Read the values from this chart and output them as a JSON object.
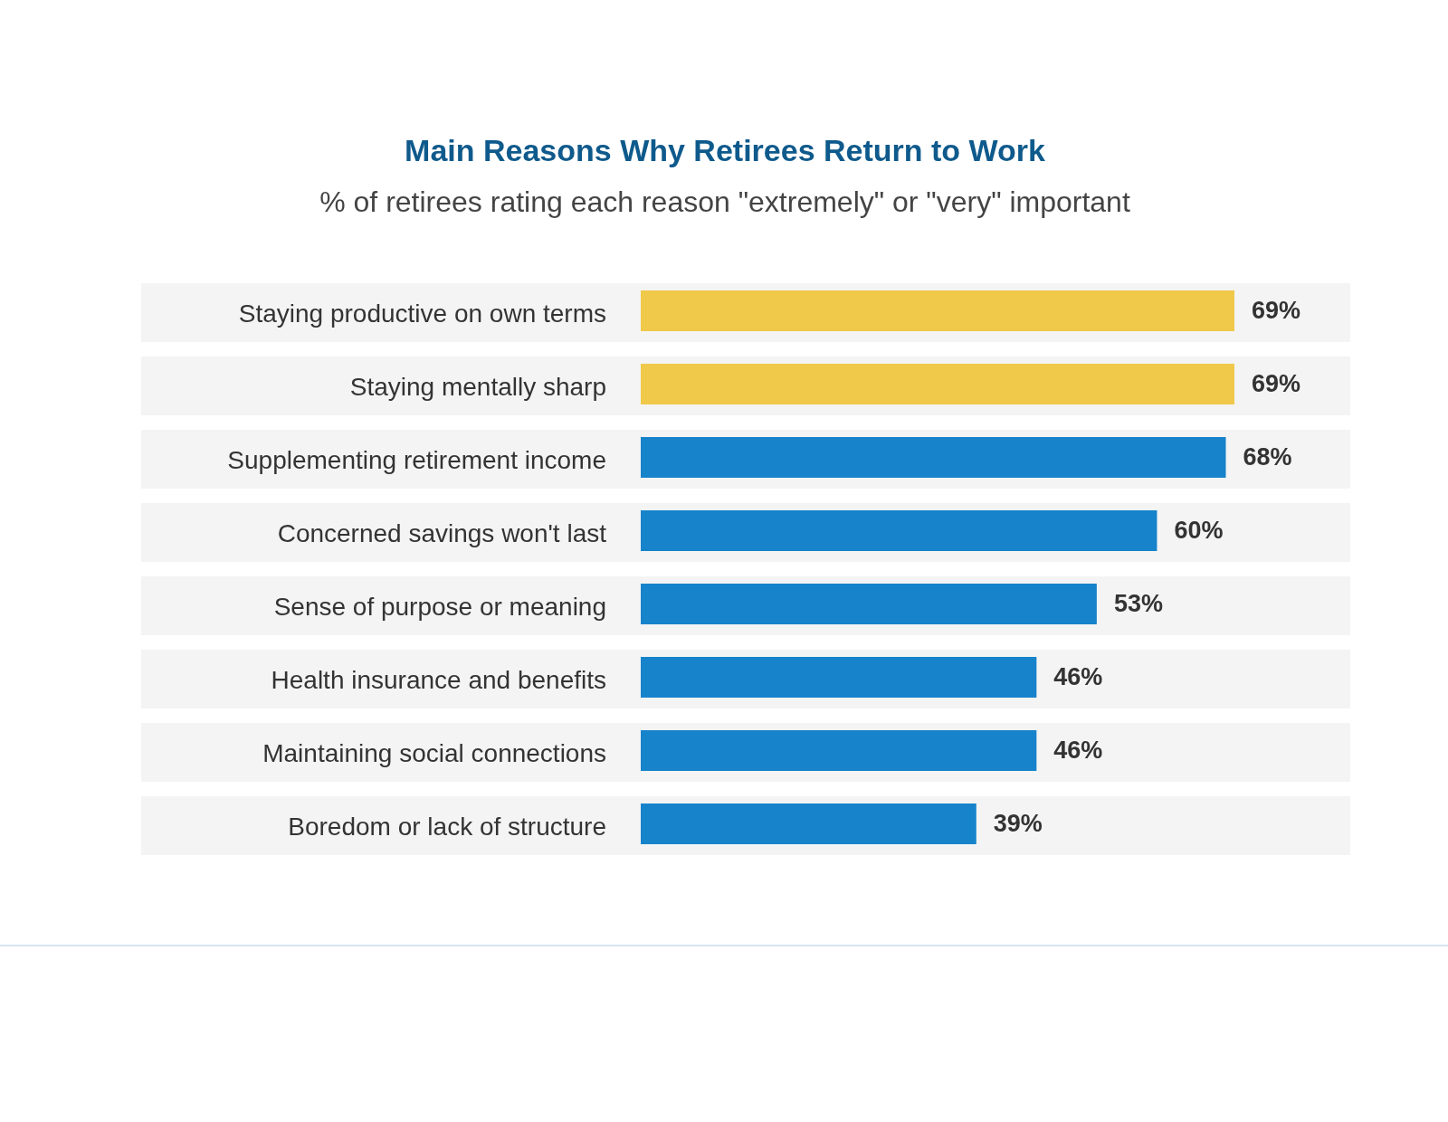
{
  "chart_data": {
    "type": "bar",
    "orientation": "horizontal",
    "title": "Main Reasons Why Retirees Return to Work",
    "subtitle": "% of retirees rating each reason \"extremely\" or \"very\" important",
    "categories": [
      "Staying productive on own terms",
      "Staying mentally sharp",
      "Supplementing retirement income",
      "Concerned savings won't last",
      "Sense of purpose or meaning",
      "Health insurance and benefits",
      "Maintaining social connections",
      "Boredom or lack of structure"
    ],
    "values": [
      69,
      69,
      68,
      60,
      53,
      46,
      46,
      39
    ],
    "colors": [
      "#f0c84a",
      "#f0c84a",
      "#1783cb",
      "#1783cb",
      "#1783cb",
      "#1783cb",
      "#1783cb",
      "#1783cb"
    ],
    "value_labels": [
      "69%",
      "69%",
      "68%",
      "60%",
      "53%",
      "46%",
      "46%",
      "39%"
    ]
  }
}
